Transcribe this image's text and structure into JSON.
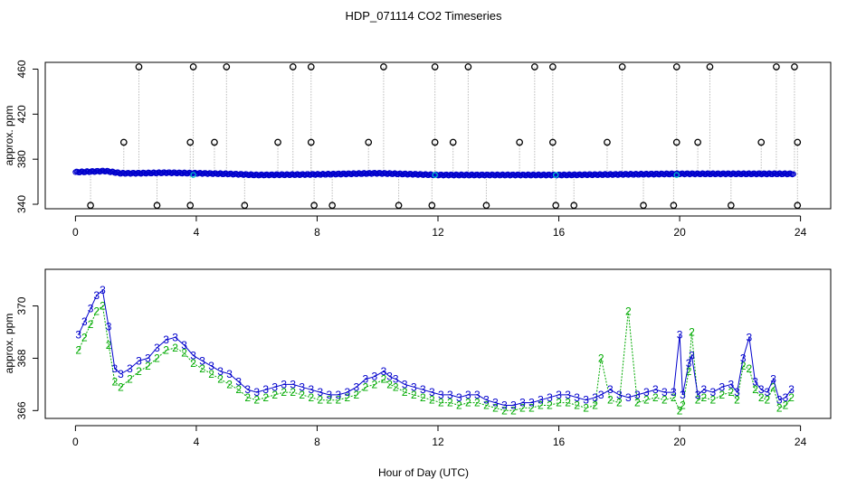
{
  "figure": {
    "title": "HDP_071114  CO2 Timeseries",
    "xlabel": "Hour of Day (UTC)"
  },
  "colors": {
    "series3": "#0000cc",
    "series2": "#00aa00",
    "qc": "#000000",
    "highlight": "#00c8c8",
    "drop": "#999999"
  },
  "chart_data": [
    {
      "type": "scatter",
      "panel": "top",
      "ylabel": "approx. ppm",
      "xlim": [
        -1,
        25
      ],
      "ylim": [
        336,
        466
      ],
      "xticks": [
        0,
        4,
        8,
        12,
        16,
        20,
        24
      ],
      "yticks": [
        340,
        380,
        420,
        460
      ],
      "xtick_labels": [
        "0",
        "4",
        "8",
        "12",
        "16",
        "20",
        "24"
      ],
      "ytick_labels": [
        "340",
        "380",
        "420",
        "460"
      ],
      "baseline": [
        [
          0.0,
          368.5
        ],
        [
          0.5,
          369.0
        ],
        [
          1.0,
          369.5
        ],
        [
          1.5,
          367.5
        ],
        [
          2.0,
          367.5
        ],
        [
          3.0,
          368.0
        ],
        [
          4.0,
          367.5
        ],
        [
          5.0,
          367.0
        ],
        [
          6.0,
          366.0
        ],
        [
          8.0,
          366.5
        ],
        [
          10.0,
          367.5
        ],
        [
          12.0,
          366.0
        ],
        [
          14.0,
          366.0
        ],
        [
          16.0,
          366.0
        ],
        [
          18.0,
          366.5
        ],
        [
          20.0,
          367.0
        ],
        [
          22.0,
          367.0
        ],
        [
          23.8,
          367.0
        ]
      ],
      "flagged_high": [
        2.1,
        3.9,
        5.0,
        7.2,
        7.8,
        10.2,
        11.9,
        13.0,
        15.2,
        15.8,
        18.1,
        19.9,
        21.0,
        23.2,
        23.8
      ],
      "flagged_mid": [
        1.6,
        3.8,
        4.6,
        6.7,
        7.8,
        9.7,
        11.9,
        12.5,
        14.7,
        15.8,
        17.6,
        19.9,
        20.6,
        22.7,
        23.9
      ],
      "flagged_low": [
        0.5,
        2.7,
        3.8,
        5.6,
        7.9,
        8.5,
        10.7,
        11.8,
        13.6,
        15.9,
        16.5,
        18.8,
        19.8,
        21.7,
        23.9
      ],
      "high_value": 462,
      "mid_value": 395,
      "low_value": 339
    },
    {
      "type": "line",
      "panel": "bottom",
      "ylabel": "approx. ppm",
      "xlim": [
        -1,
        25
      ],
      "ylim": [
        365.7,
        371.4
      ],
      "xticks": [
        0,
        4,
        8,
        12,
        16,
        20,
        24
      ],
      "yticks": [
        366,
        368,
        370
      ],
      "xtick_labels": [
        "0",
        "4",
        "8",
        "12",
        "16",
        "20",
        "24"
      ],
      "ytick_labels": [
        "366",
        "368",
        "370"
      ],
      "series": [
        {
          "name": "3",
          "x": [
            0.1,
            0.3,
            0.5,
            0.7,
            0.9,
            1.1,
            1.3,
            1.5,
            1.8,
            2.1,
            2.4,
            2.7,
            3.0,
            3.3,
            3.6,
            3.9,
            4.2,
            4.5,
            4.8,
            5.1,
            5.4,
            5.7,
            6.0,
            6.3,
            6.6,
            6.9,
            7.2,
            7.5,
            7.8,
            8.1,
            8.4,
            8.7,
            9.0,
            9.3,
            9.6,
            9.9,
            10.2,
            10.4,
            10.6,
            10.9,
            11.2,
            11.5,
            11.8,
            12.1,
            12.4,
            12.7,
            13.0,
            13.3,
            13.6,
            13.9,
            14.2,
            14.5,
            14.8,
            15.1,
            15.4,
            15.7,
            16.0,
            16.3,
            16.6,
            16.9,
            17.2,
            17.4,
            17.7,
            18.0,
            18.3,
            18.6,
            18.9,
            19.2,
            19.5,
            19.8,
            20.0,
            20.1,
            20.3,
            20.4,
            20.6,
            20.8,
            21.1,
            21.4,
            21.7,
            21.9,
            22.1,
            22.3,
            22.5,
            22.7,
            22.9,
            23.1,
            23.3,
            23.5,
            23.7
          ],
          "values": [
            368.9,
            369.4,
            369.9,
            370.4,
            370.6,
            369.2,
            367.6,
            367.4,
            367.6,
            367.9,
            368.0,
            368.4,
            368.7,
            368.8,
            368.5,
            368.1,
            367.9,
            367.7,
            367.5,
            367.4,
            367.1,
            366.8,
            366.7,
            366.8,
            366.9,
            367.0,
            367.0,
            366.9,
            366.8,
            366.7,
            366.6,
            366.6,
            366.7,
            366.9,
            367.2,
            367.3,
            367.5,
            367.3,
            367.2,
            367.0,
            366.9,
            366.8,
            366.7,
            366.6,
            366.6,
            366.5,
            366.6,
            366.6,
            366.4,
            366.3,
            366.2,
            366.2,
            366.3,
            366.3,
            366.4,
            366.5,
            366.6,
            366.6,
            366.5,
            366.4,
            366.5,
            366.6,
            366.8,
            366.6,
            366.5,
            366.6,
            366.7,
            366.8,
            366.7,
            366.7,
            368.9,
            366.6,
            367.8,
            368.1,
            366.6,
            366.8,
            366.7,
            366.9,
            367.0,
            366.7,
            368.0,
            368.8,
            367.1,
            366.8,
            366.7,
            367.2,
            366.4,
            366.5,
            366.8
          ]
        },
        {
          "name": "2",
          "x": [
            0.1,
            0.3,
            0.5,
            0.7,
            0.9,
            1.1,
            1.3,
            1.5,
            1.8,
            2.1,
            2.4,
            2.7,
            3.0,
            3.3,
            3.6,
            3.9,
            4.2,
            4.5,
            4.8,
            5.1,
            5.4,
            5.7,
            6.0,
            6.3,
            6.6,
            6.9,
            7.2,
            7.5,
            7.8,
            8.1,
            8.4,
            8.7,
            9.0,
            9.3,
            9.6,
            9.9,
            10.2,
            10.4,
            10.6,
            10.9,
            11.2,
            11.5,
            11.8,
            12.1,
            12.4,
            12.7,
            13.0,
            13.3,
            13.6,
            13.9,
            14.2,
            14.5,
            14.8,
            15.1,
            15.4,
            15.7,
            16.0,
            16.3,
            16.6,
            16.9,
            17.2,
            17.4,
            17.7,
            18.0,
            18.3,
            18.6,
            18.9,
            19.2,
            19.5,
            19.8,
            20.0,
            20.1,
            20.3,
            20.4,
            20.6,
            20.8,
            21.1,
            21.4,
            21.7,
            21.9,
            22.1,
            22.3,
            22.5,
            22.7,
            22.9,
            23.1,
            23.3,
            23.5,
            23.7
          ],
          "values": [
            368.3,
            368.8,
            369.3,
            369.8,
            370.0,
            368.5,
            367.1,
            366.9,
            367.2,
            367.5,
            367.7,
            368.0,
            368.3,
            368.4,
            368.2,
            367.8,
            367.6,
            367.4,
            367.2,
            367.0,
            366.8,
            366.5,
            366.4,
            366.5,
            366.6,
            366.7,
            366.7,
            366.6,
            366.5,
            366.4,
            366.4,
            366.4,
            366.5,
            366.6,
            366.9,
            367.0,
            367.2,
            367.0,
            366.9,
            366.7,
            366.6,
            366.5,
            366.4,
            366.3,
            366.3,
            366.2,
            366.3,
            366.3,
            366.2,
            366.1,
            366.0,
            366.0,
            366.1,
            366.1,
            366.2,
            366.2,
            366.3,
            366.3,
            366.2,
            366.1,
            366.2,
            368.0,
            366.4,
            366.3,
            369.8,
            366.3,
            366.4,
            366.5,
            366.4,
            366.5,
            366.0,
            366.2,
            367.5,
            369.0,
            366.4,
            366.5,
            366.4,
            366.6,
            366.7,
            366.4,
            367.7,
            367.6,
            366.8,
            366.5,
            366.4,
            366.9,
            366.1,
            366.2,
            366.5
          ]
        }
      ]
    }
  ]
}
